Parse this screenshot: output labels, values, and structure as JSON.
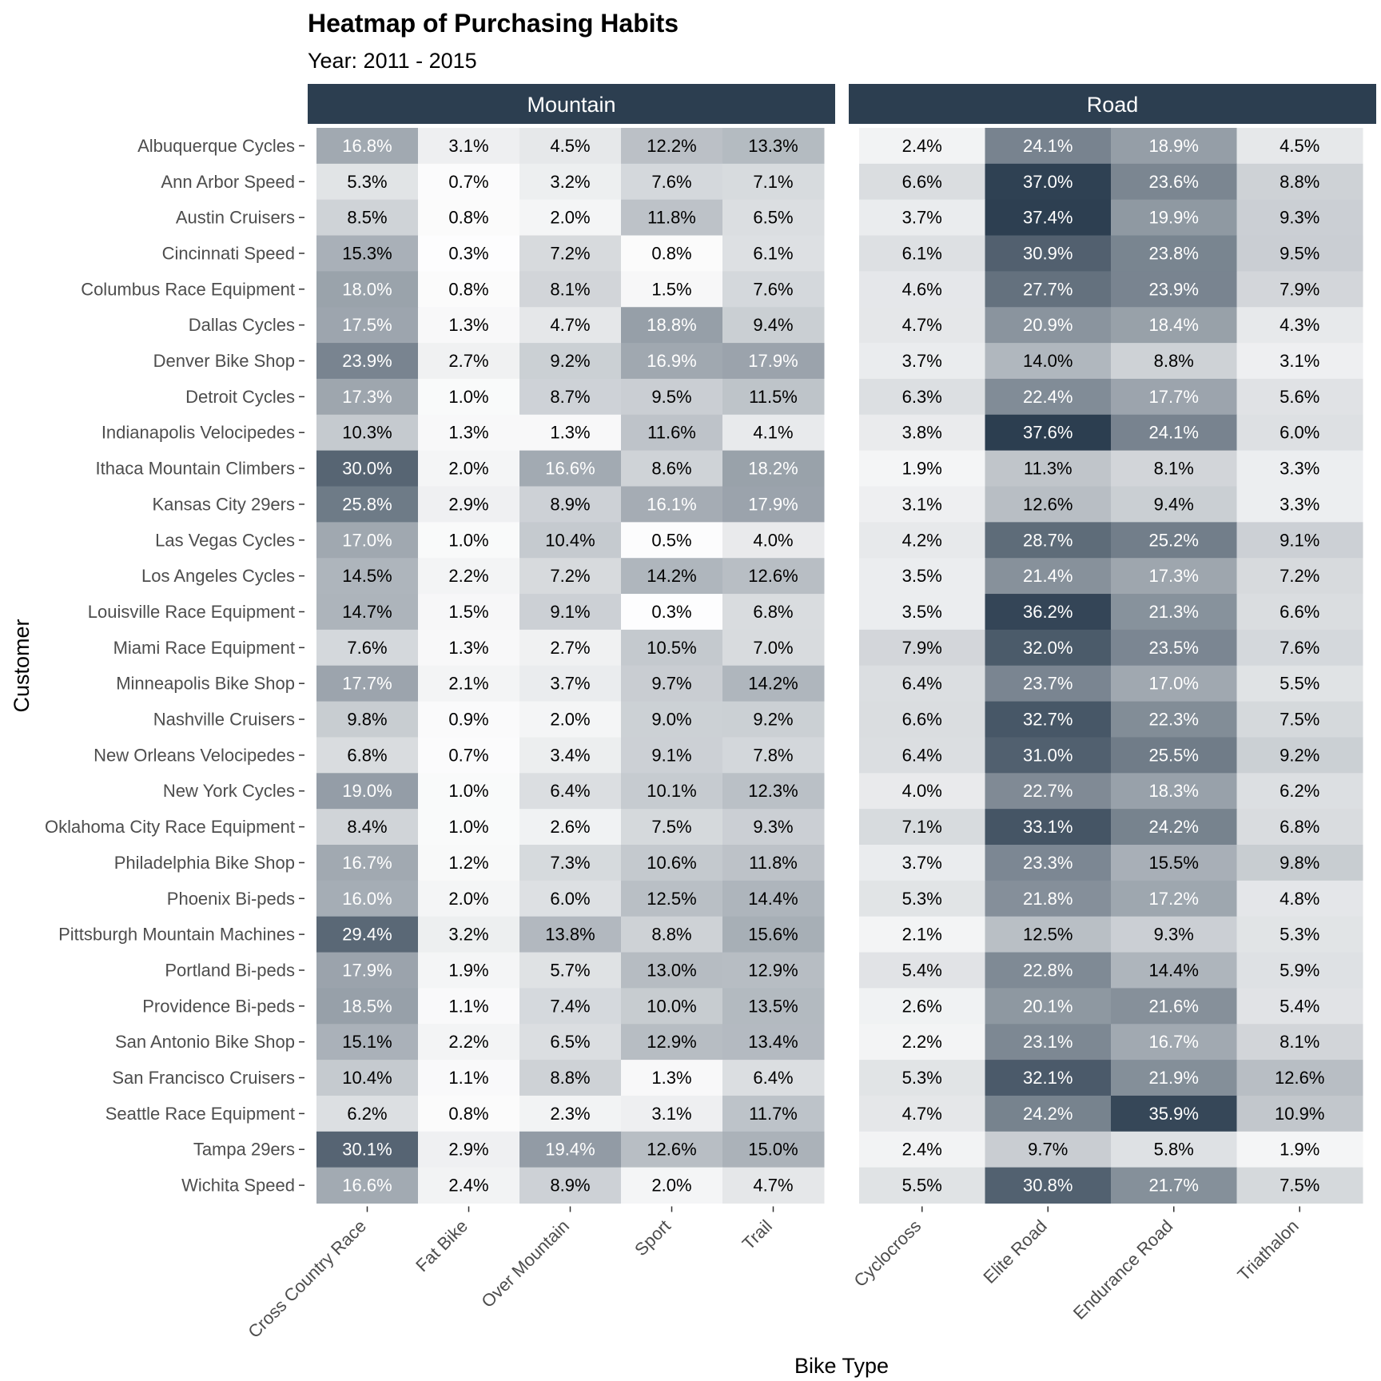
{
  "chart_data": {
    "type": "heatmap",
    "title": "Heatmap of Purchasing Habits",
    "subtitle": "Year: 2011 - 2015",
    "xlabel": "Bike Type",
    "ylabel": "Customer",
    "low_color": "#ffffff",
    "high_color": "#2c3e50",
    "grid": false,
    "rows": [
      "Albuquerque Cycles",
      "Ann Arbor Speed",
      "Austin Cruisers",
      "Cincinnati Speed",
      "Columbus Race Equipment",
      "Dallas Cycles",
      "Denver Bike Shop",
      "Detroit Cycles",
      "Indianapolis Velocipedes",
      "Ithaca Mountain Climbers",
      "Kansas City 29ers",
      "Las Vegas Cycles",
      "Los Angeles Cycles",
      "Louisville Race Equipment",
      "Miami Race Equipment",
      "Minneapolis Bike Shop",
      "Nashville Cruisers",
      "New Orleans Velocipedes",
      "New York Cycles",
      "Oklahoma City Race Equipment",
      "Philadelphia Bike Shop",
      "Phoenix Bi-peds",
      "Pittsburgh Mountain Machines",
      "Portland Bi-peds",
      "Providence Bi-peds",
      "San Antonio Bike Shop",
      "San Francisco Cruisers",
      "Seattle Race Equipment",
      "Tampa 29ers",
      "Wichita Speed"
    ],
    "facets": [
      {
        "name": "Mountain",
        "columns": [
          "Cross Country Race",
          "Fat Bike",
          "Over Mountain",
          "Sport",
          "Trail"
        ],
        "values": [
          [
            16.8,
            3.1,
            4.5,
            12.2,
            13.3
          ],
          [
            5.3,
            0.7,
            3.2,
            7.6,
            7.1
          ],
          [
            8.5,
            0.8,
            2.0,
            11.8,
            6.5
          ],
          [
            15.3,
            0.3,
            7.2,
            0.8,
            6.1
          ],
          [
            18.0,
            0.8,
            8.1,
            1.5,
            7.6
          ],
          [
            17.5,
            1.3,
            4.7,
            18.8,
            9.4
          ],
          [
            23.9,
            2.7,
            9.2,
            16.9,
            17.9
          ],
          [
            17.3,
            1.0,
            8.7,
            9.5,
            11.5
          ],
          [
            10.3,
            1.3,
            1.3,
            11.6,
            4.1
          ],
          [
            30.0,
            2.0,
            16.6,
            8.6,
            18.2
          ],
          [
            25.8,
            2.9,
            8.9,
            16.1,
            17.9
          ],
          [
            17.0,
            1.0,
            10.4,
            0.5,
            4.0
          ],
          [
            14.5,
            2.2,
            7.2,
            14.2,
            12.6
          ],
          [
            14.7,
            1.5,
            9.1,
            0.3,
            6.8
          ],
          [
            7.6,
            1.3,
            2.7,
            10.5,
            7.0
          ],
          [
            17.7,
            2.1,
            3.7,
            9.7,
            14.2
          ],
          [
            9.8,
            0.9,
            2.0,
            9.0,
            9.2
          ],
          [
            6.8,
            0.7,
            3.4,
            9.1,
            7.8
          ],
          [
            19.0,
            1.0,
            6.4,
            10.1,
            12.3
          ],
          [
            8.4,
            1.0,
            2.6,
            7.5,
            9.3
          ],
          [
            16.7,
            1.2,
            7.3,
            10.6,
            11.8
          ],
          [
            16.0,
            2.0,
            6.0,
            12.5,
            14.4
          ],
          [
            29.4,
            3.2,
            13.8,
            8.8,
            15.6
          ],
          [
            17.9,
            1.9,
            5.7,
            13.0,
            12.9
          ],
          [
            18.5,
            1.1,
            7.4,
            10.0,
            13.5
          ],
          [
            15.1,
            2.2,
            6.5,
            12.9,
            13.4
          ],
          [
            10.4,
            1.1,
            8.8,
            1.3,
            6.4
          ],
          [
            6.2,
            0.8,
            2.3,
            3.1,
            11.7
          ],
          [
            30.1,
            2.9,
            19.4,
            12.6,
            15.0
          ],
          [
            16.6,
            2.4,
            8.9,
            2.0,
            4.7
          ]
        ]
      },
      {
        "name": "Road",
        "columns": [
          "Cyclocross",
          "Elite Road",
          "Endurance Road",
          "Triathalon"
        ],
        "values": [
          [
            2.4,
            24.1,
            18.9,
            4.5
          ],
          [
            6.6,
            37.0,
            23.6,
            8.8
          ],
          [
            3.7,
            37.4,
            19.9,
            9.3
          ],
          [
            6.1,
            30.9,
            23.8,
            9.5
          ],
          [
            4.6,
            27.7,
            23.9,
            7.9
          ],
          [
            4.7,
            20.9,
            18.4,
            4.3
          ],
          [
            3.7,
            14.0,
            8.8,
            3.1
          ],
          [
            6.3,
            22.4,
            17.7,
            5.6
          ],
          [
            3.8,
            37.6,
            24.1,
            6.0
          ],
          [
            1.9,
            11.3,
            8.1,
            3.3
          ],
          [
            3.1,
            12.6,
            9.4,
            3.3
          ],
          [
            4.2,
            28.7,
            25.2,
            9.1
          ],
          [
            3.5,
            21.4,
            17.3,
            7.2
          ],
          [
            3.5,
            36.2,
            21.3,
            6.6
          ],
          [
            7.9,
            32.0,
            23.5,
            7.6
          ],
          [
            6.4,
            23.7,
            17.0,
            5.5
          ],
          [
            6.6,
            32.7,
            22.3,
            7.5
          ],
          [
            6.4,
            31.0,
            25.5,
            9.2
          ],
          [
            4.0,
            22.7,
            18.3,
            6.2
          ],
          [
            7.1,
            33.1,
            24.2,
            6.8
          ],
          [
            3.7,
            23.3,
            15.5,
            9.8
          ],
          [
            5.3,
            21.8,
            17.2,
            4.8
          ],
          [
            2.1,
            12.5,
            9.3,
            5.3
          ],
          [
            5.4,
            22.8,
            14.4,
            5.9
          ],
          [
            2.6,
            20.1,
            21.6,
            5.4
          ],
          [
            2.2,
            23.1,
            16.7,
            8.1
          ],
          [
            5.3,
            32.1,
            21.9,
            12.6
          ],
          [
            4.7,
            24.2,
            35.9,
            10.9
          ],
          [
            2.4,
            9.7,
            5.8,
            1.9
          ],
          [
            5.5,
            30.8,
            21.7,
            7.5
          ]
        ]
      }
    ]
  }
}
